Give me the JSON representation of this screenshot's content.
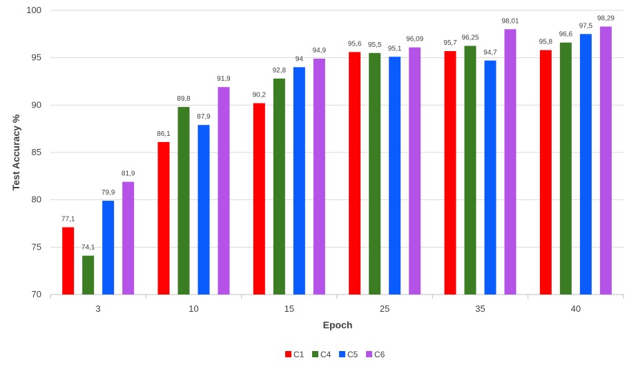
{
  "chart_data": {
    "type": "bar",
    "title": "",
    "xlabel": "Epoch",
    "ylabel": "Test Accuracy  %",
    "ylim": [
      70,
      100
    ],
    "yticks": [
      70,
      75,
      80,
      85,
      90,
      95,
      100
    ],
    "grid": true,
    "legend_position": "bottom",
    "categories": [
      "3",
      "10",
      "15",
      "25",
      "35",
      "40"
    ],
    "series": [
      {
        "name": "C1",
        "color": "#ff0000",
        "values": [
          77.1,
          86.1,
          90.2,
          95.6,
          95.7,
          95.8
        ],
        "labels": [
          "77,1",
          "86,1",
          "90,2",
          "95,6",
          "95,7",
          "95,8"
        ]
      },
      {
        "name": "C4",
        "color": "#3a7d22",
        "values": [
          74.1,
          89.8,
          92.8,
          95.5,
          96.25,
          96.6
        ],
        "labels": [
          "74,1",
          "89,8",
          "92,8",
          "95,5",
          "96,25",
          "96,6"
        ]
      },
      {
        "name": "C5",
        "color": "#0a5cff",
        "values": [
          79.9,
          87.9,
          94,
          95.1,
          94.7,
          97.5
        ],
        "labels": [
          "79,9",
          "87,9",
          "94",
          "95,1",
          "94,7",
          "97,5"
        ]
      },
      {
        "name": "C6",
        "color": "#b552e8",
        "values": [
          81.9,
          91.9,
          94.9,
          96.09,
          98.01,
          98.29
        ],
        "labels": [
          "81,9",
          "91,9",
          "94,9",
          "96,09",
          "98,01",
          "98,29"
        ]
      }
    ]
  }
}
